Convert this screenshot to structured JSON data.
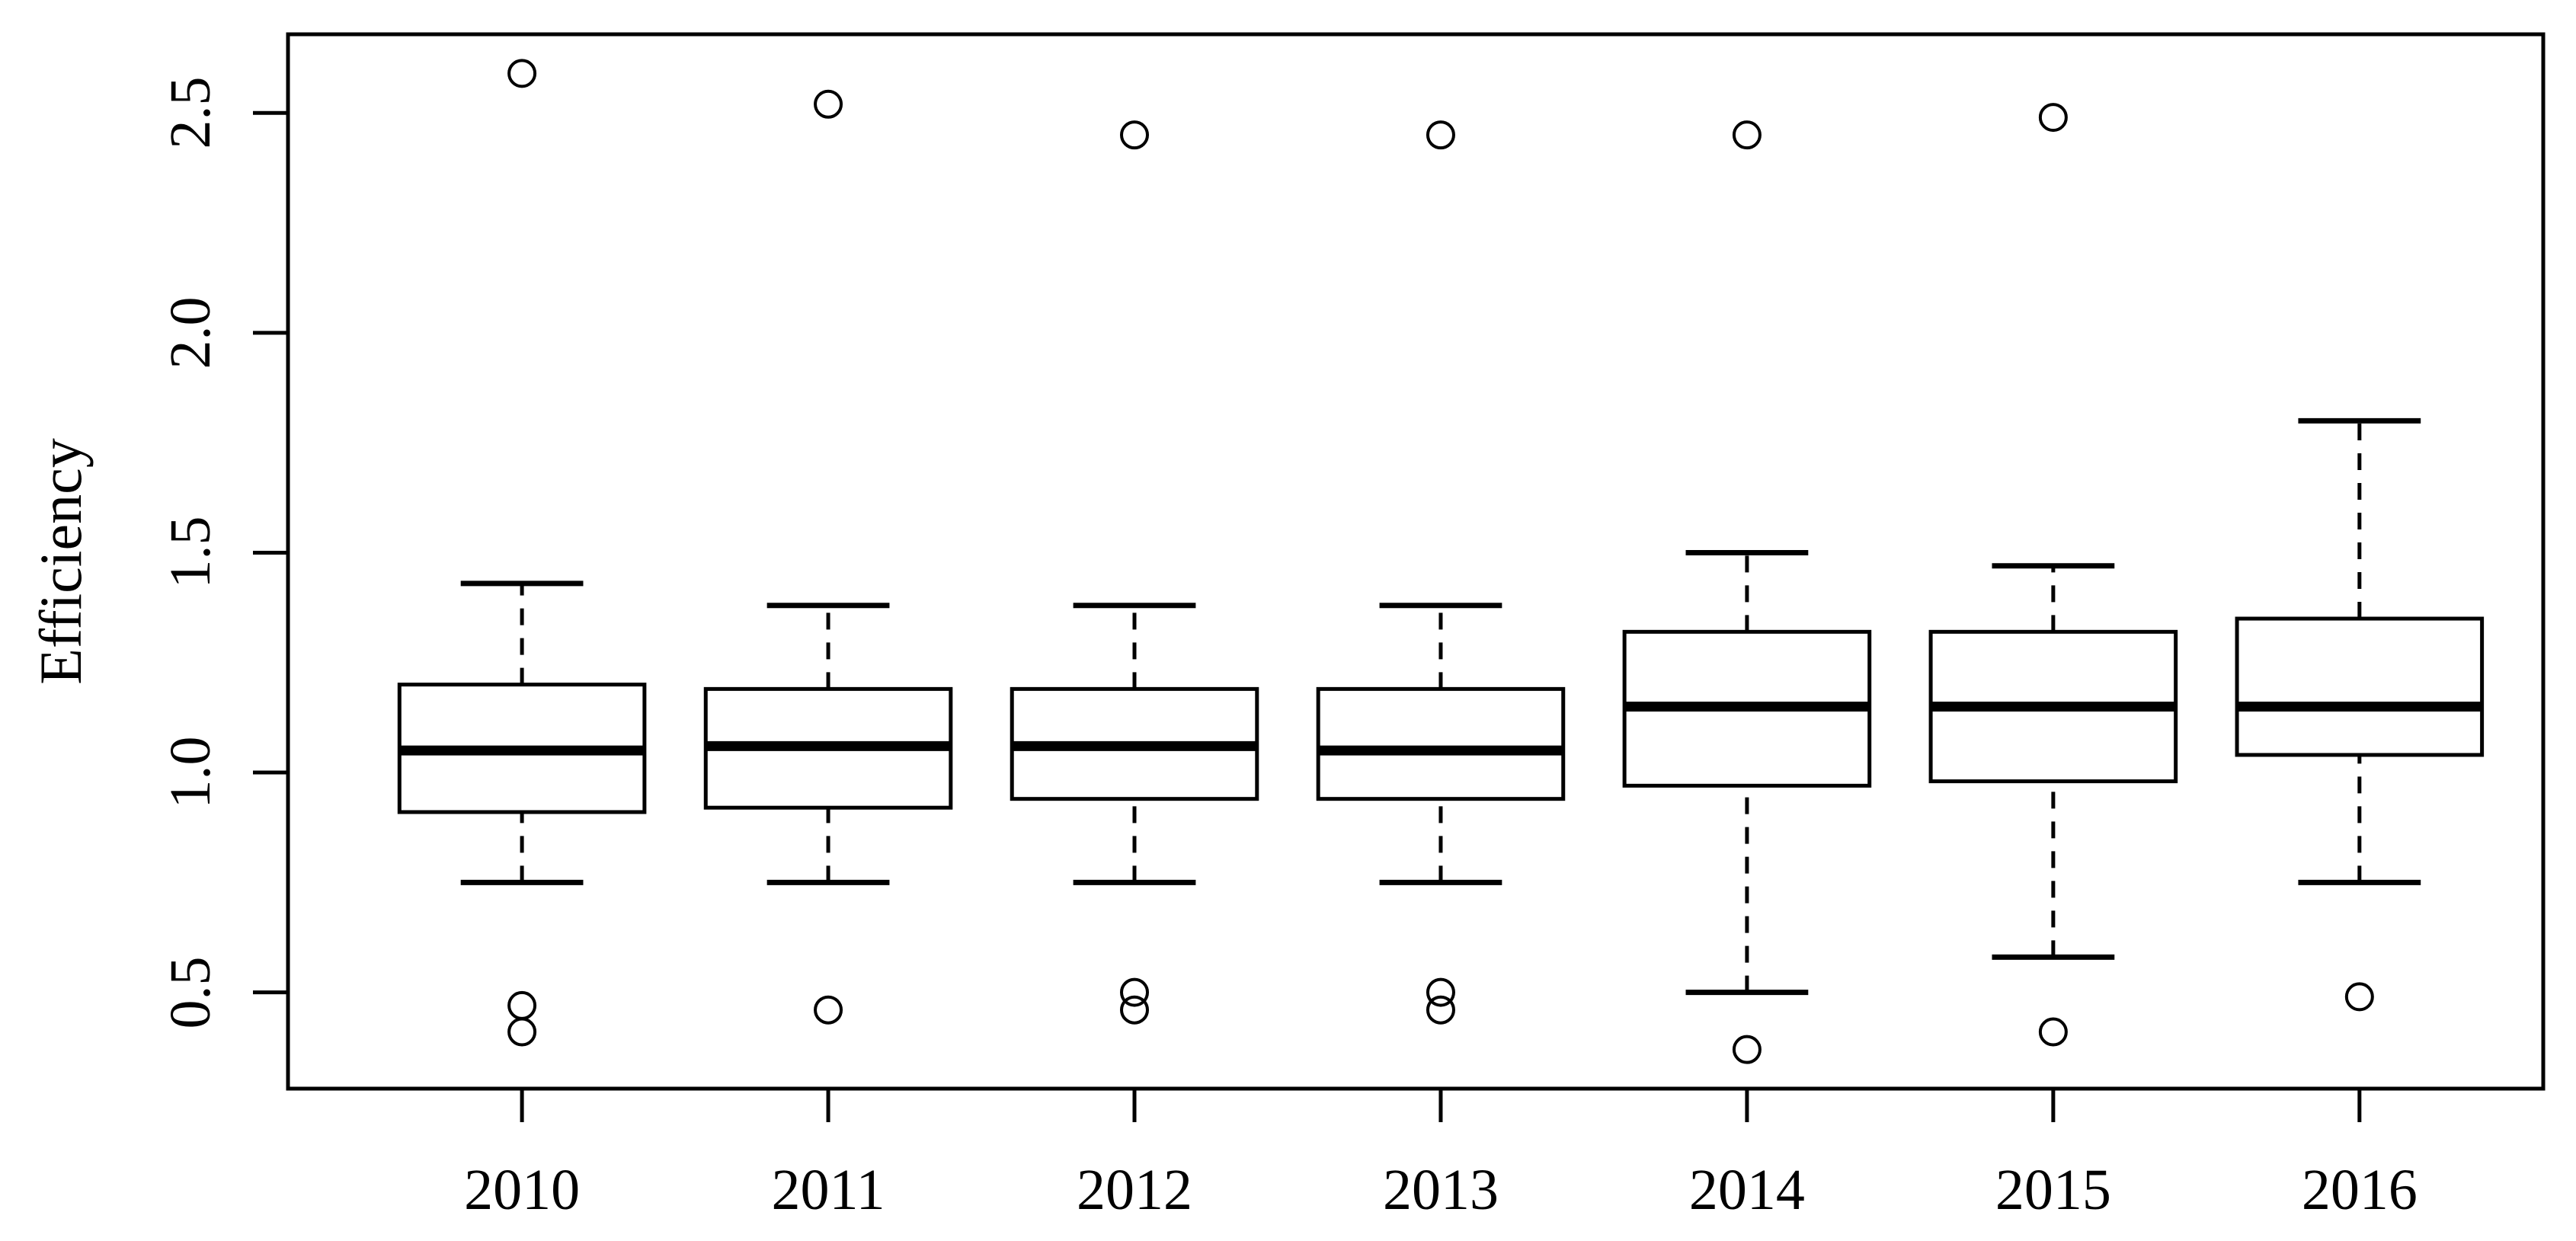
{
  "chart_data": {
    "type": "boxplot",
    "title": "",
    "xlabel": "",
    "ylabel": "Efficiency",
    "categories": [
      "2010",
      "2011",
      "2012",
      "2013",
      "2014",
      "2015",
      "2016"
    ],
    "ytick_values": [
      0.5,
      1.0,
      1.5,
      2.0,
      2.5
    ],
    "ytick_labels": [
      "0.5",
      "1.0",
      "1.5",
      "2.0",
      "2.5"
    ],
    "ylim": [
      0.281,
      2.679
    ],
    "xlim": [
      0.236,
      7.6
    ],
    "grid": false,
    "legend": "none",
    "box_width_units": 0.8,
    "staple_width_units": 0.4,
    "series": [
      {
        "category": "2010",
        "whisker_low": 0.75,
        "q1": 0.91,
        "median": 1.05,
        "q3": 1.2,
        "whisker_high": 1.43,
        "outliers": [
          2.59,
          0.47,
          0.41
        ]
      },
      {
        "category": "2011",
        "whisker_low": 0.75,
        "q1": 0.92,
        "median": 1.06,
        "q3": 1.19,
        "whisker_high": 1.38,
        "outliers": [
          2.52,
          0.46
        ]
      },
      {
        "category": "2012",
        "whisker_low": 0.75,
        "q1": 0.94,
        "median": 1.06,
        "q3": 1.19,
        "whisker_high": 1.38,
        "outliers": [
          2.45,
          0.5,
          0.46
        ]
      },
      {
        "category": "2013",
        "whisker_low": 0.75,
        "q1": 0.94,
        "median": 1.05,
        "q3": 1.19,
        "whisker_high": 1.38,
        "outliers": [
          2.45,
          0.5,
          0.46
        ]
      },
      {
        "category": "2014",
        "whisker_low": 0.5,
        "q1": 0.97,
        "median": 1.15,
        "q3": 1.32,
        "whisker_high": 1.5,
        "outliers": [
          2.45,
          0.37
        ]
      },
      {
        "category": "2015",
        "whisker_low": 0.58,
        "q1": 0.98,
        "median": 1.15,
        "q3": 1.32,
        "whisker_high": 1.47,
        "outliers": [
          2.49,
          0.41
        ]
      },
      {
        "category": "2016",
        "whisker_low": 0.75,
        "q1": 1.04,
        "median": 1.15,
        "q3": 1.35,
        "whisker_high": 1.8,
        "outliers": [
          0.49
        ]
      }
    ],
    "colors": {
      "stroke": "#000000",
      "box_fill": "#ffffff",
      "background": "#ffffff"
    }
  }
}
